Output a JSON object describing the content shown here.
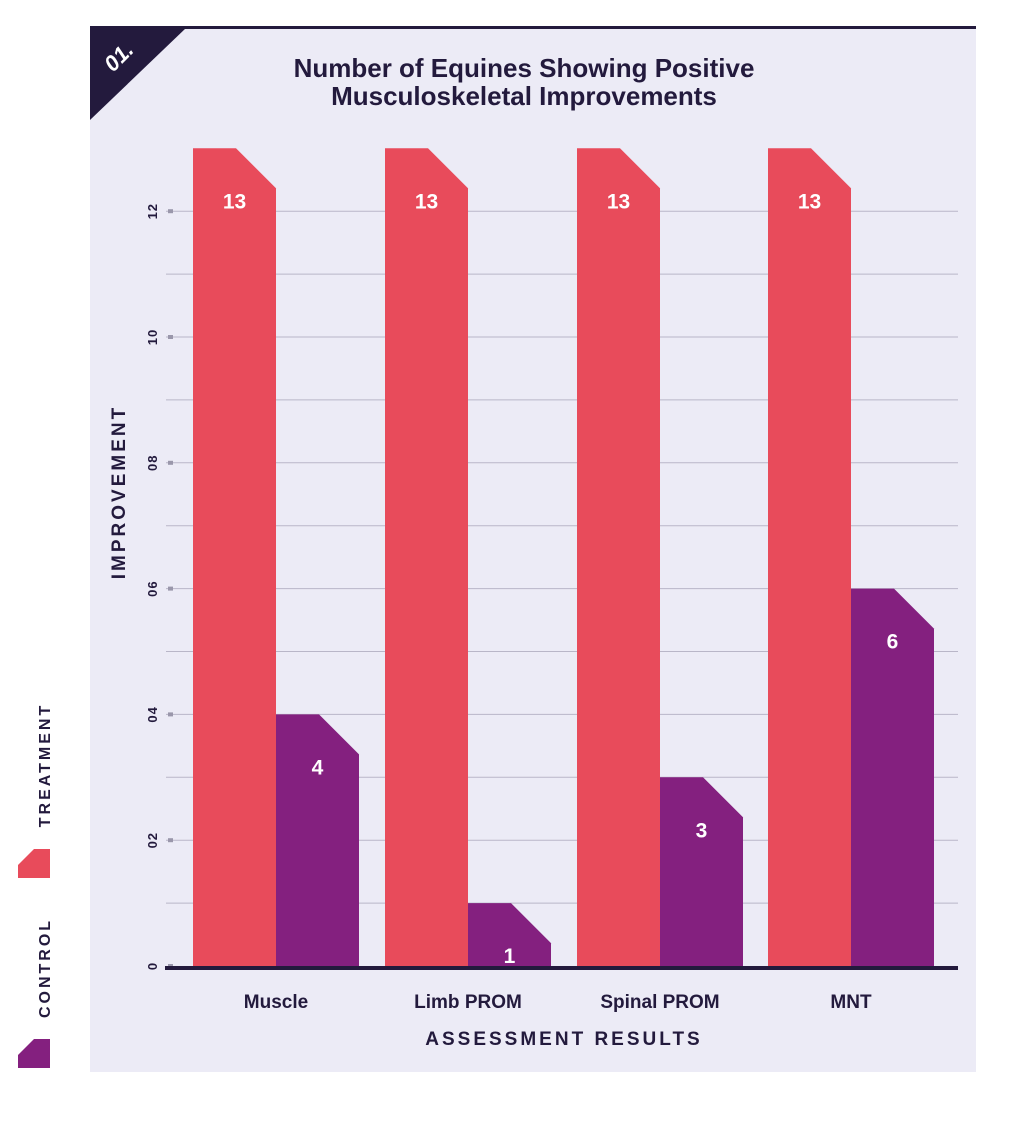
{
  "badge": "01.",
  "chart_data": {
    "type": "bar",
    "title": [
      "Number of Equines Showing Positive",
      "Musculoskeletal Improvements"
    ],
    "xlabel": "ASSESSMENT RESULTS",
    "ylabel": "IMPROVEMENT",
    "categories": [
      "Muscle",
      "Limb PROM",
      "Spinal PROM",
      "MNT"
    ],
    "series": [
      {
        "name": "TREATMENT",
        "color": "#e84b5b",
        "values": [
          13,
          13,
          13,
          13
        ]
      },
      {
        "name": "CONTROL",
        "color": "#84207f",
        "values": [
          4,
          1,
          3,
          6
        ]
      }
    ],
    "ylim": [
      0,
      13
    ],
    "yticks": [
      0,
      2,
      4,
      6,
      8,
      10,
      12
    ],
    "ytick_labels": [
      "0",
      "02",
      "04",
      "06",
      "08",
      "10",
      "12"
    ],
    "grid": true,
    "legend": "left-vertical"
  },
  "colors": {
    "panel_bg": "#ecebf6",
    "dark": "#231a3d",
    "treatment": "#e84b5b",
    "control": "#84207f"
  }
}
